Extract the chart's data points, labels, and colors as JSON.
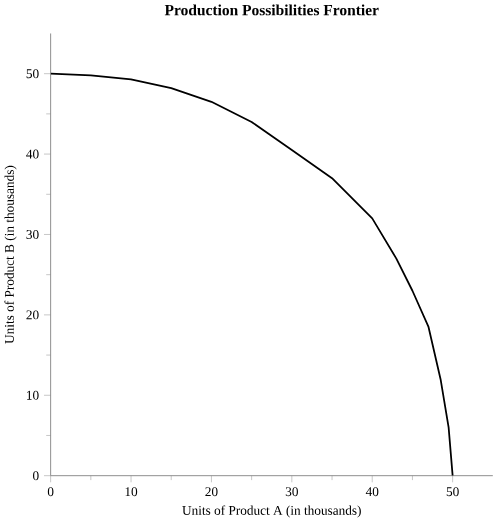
{
  "chart_data": {
    "type": "line",
    "title": "Production Possibilities Frontier",
    "xlabel": "Units of Product A (in thousands)",
    "ylabel": "Units of Product B (in thousands)",
    "x": [
      0,
      5,
      10,
      15,
      20,
      25,
      30,
      35,
      40,
      43,
      45,
      47,
      48.5,
      49.5,
      50
    ],
    "series": [
      {
        "color": "#000000",
        "values": [
          50,
          49.8,
          49.3,
          48.2,
          46.5,
          44,
          40.5,
          37,
          32,
          27,
          23,
          18.5,
          12,
          6,
          0
        ]
      }
    ],
    "xlim": [
      0,
      55
    ],
    "ylim": [
      0,
      55
    ],
    "xticks": [
      0,
      10,
      20,
      30,
      40,
      50
    ],
    "yticks": [
      0,
      10,
      20,
      30,
      40,
      50
    ],
    "grid": false,
    "legend": false,
    "marker": "none",
    "line_style": "solid"
  }
}
